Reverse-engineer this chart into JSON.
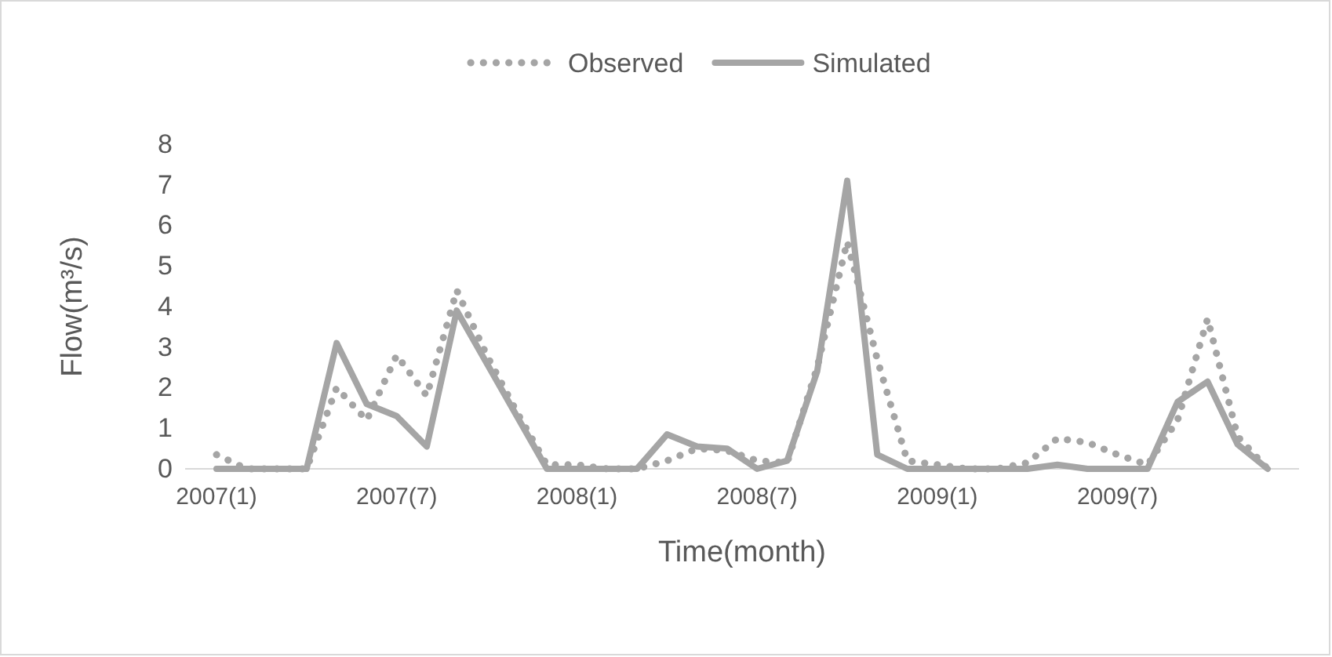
{
  "chart_data": {
    "type": "line",
    "xlabel": "Time(month)",
    "ylabel": "Flow(m³/s)",
    "categories": [
      "2007(1)",
      null,
      null,
      null,
      null,
      null,
      "2007(7)",
      null,
      null,
      null,
      null,
      null,
      "2008(1)",
      null,
      null,
      null,
      null,
      null,
      "2008(7)",
      null,
      null,
      null,
      null,
      null,
      "2009(1)",
      null,
      null,
      null,
      null,
      null,
      "2009(7)",
      null,
      null,
      null,
      null,
      null
    ],
    "series": [
      {
        "name": "Observed",
        "color": "#a5a5a5",
        "line_style": "dotted",
        "values": [
          0.35,
          0,
          0,
          0,
          2.0,
          1.2,
          2.8,
          1.8,
          4.4,
          2.8,
          1.4,
          0.1,
          0.1,
          0,
          0,
          0.2,
          0.5,
          0.45,
          0.2,
          0.15,
          2.5,
          5.6,
          2.7,
          0.2,
          0.1,
          0,
          0,
          0.15,
          0.75,
          0.65,
          0.35,
          0.1,
          1.2,
          3.7,
          0.8,
          0
        ]
      },
      {
        "name": "Simulated",
        "color": "#a5a5a5",
        "line_style": "solid",
        "values": [
          0,
          0,
          0,
          0,
          3.1,
          1.6,
          1.3,
          0.55,
          3.9,
          2.6,
          1.3,
          0,
          0,
          0,
          0,
          0.85,
          0.55,
          0.5,
          0,
          0.2,
          2.4,
          7.1,
          0.35,
          0,
          0,
          0,
          0,
          0,
          0.1,
          0,
          0,
          0,
          1.65,
          2.15,
          0.6,
          0
        ]
      }
    ],
    "ylim": [
      0,
      8
    ],
    "yticks": [
      0,
      1,
      2,
      3,
      4,
      5,
      6,
      7,
      8
    ],
    "grid": false,
    "legend": "top",
    "marker": "none"
  }
}
